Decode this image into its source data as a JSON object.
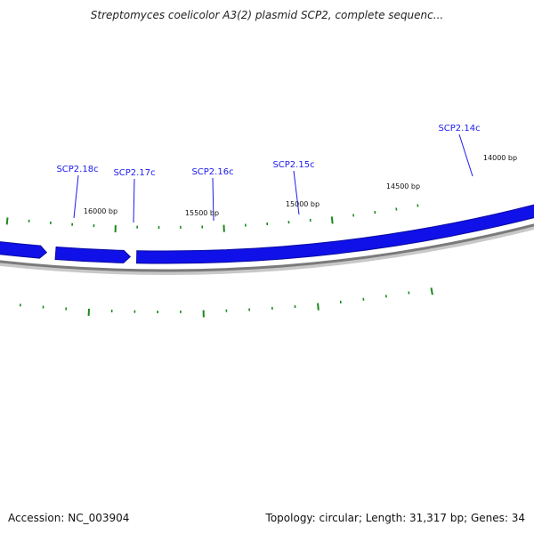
{
  "header": {
    "title": "Streptomyces coelicolor A3(2) plasmid SCP2, complete sequenc..."
  },
  "footer": {
    "accession": "Accession: NC_003904",
    "summary": "Topology: circular; Length: 31,317 bp; Genes: 34"
  },
  "colors": {
    "gene": "#1010e8",
    "gene_edge": "#0a0aa0",
    "backbone": "#7a7a7a",
    "tick": "#1a8a1a",
    "label": "#1a1aee"
  },
  "gene_labels": [
    "SCP2.18c",
    "SCP2.17c",
    "SCP2.16c",
    "SCP2.15c",
    "SCP2.14c"
  ],
  "scale_labels": [
    "16000 bp",
    "15500 bp",
    "15000 bp",
    "14500 bp",
    "14000 bp"
  ]
}
